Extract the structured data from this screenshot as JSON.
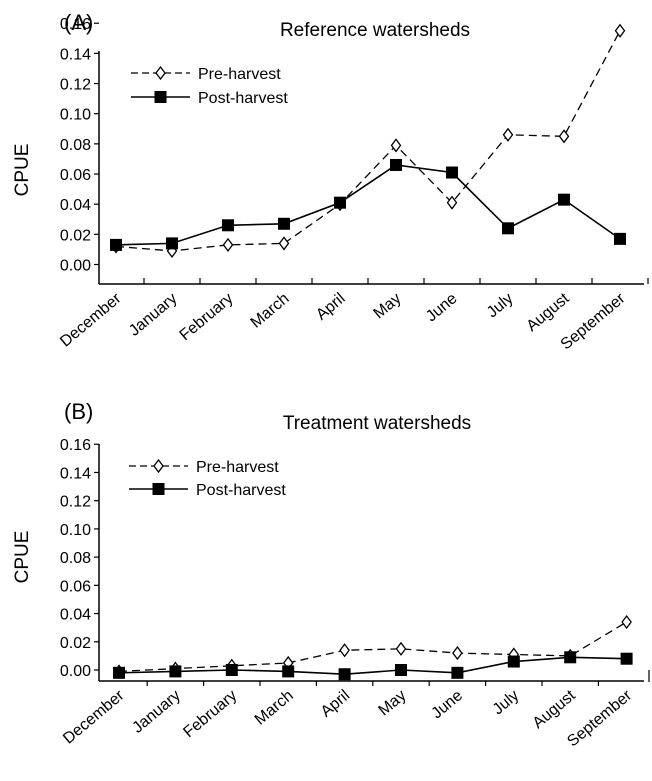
{
  "chart_data": [
    {
      "type": "line",
      "panel_label": "(A)",
      "title": "Reference watersheds",
      "xlabel": "",
      "ylabel": "CPUE",
      "ylim": [
        0,
        0.16
      ],
      "yticks": [
        "0.00",
        "0.02",
        "0.04",
        "0.06",
        "0.08",
        "0.10",
        "0.12",
        "0.14",
        "0.16"
      ],
      "grid": false,
      "legend_position": "top-left",
      "categories": [
        "December",
        "January",
        "February",
        "March",
        "April",
        "May",
        "June",
        "July",
        "August",
        "September"
      ],
      "series": [
        {
          "name": "Pre-harvest",
          "style": "dashed",
          "marker": "open-diamond",
          "values": [
            0.012,
            0.009,
            0.013,
            0.014,
            0.04,
            0.079,
            0.041,
            0.086,
            0.085,
            0.155
          ]
        },
        {
          "name": "Post-harvest",
          "style": "solid",
          "marker": "filled-square",
          "values": [
            0.013,
            0.014,
            0.026,
            0.027,
            0.041,
            0.066,
            0.061,
            0.024,
            0.043,
            0.017
          ]
        }
      ]
    },
    {
      "type": "line",
      "panel_label": "(B)",
      "title": "Treatment watersheds",
      "xlabel": "",
      "ylabel": "CPUE",
      "ylim": [
        -0.004,
        0.16
      ],
      "yticks": [
        "0.00",
        "0.02",
        "0.04",
        "0.06",
        "0.08",
        "0.10",
        "0.12",
        "0.14",
        "0.16"
      ],
      "grid": false,
      "legend_position": "top-left",
      "categories": [
        "December",
        "January",
        "February",
        "March",
        "April",
        "May",
        "June",
        "July",
        "August",
        "September"
      ],
      "series": [
        {
          "name": "Pre-harvest",
          "style": "dashed",
          "marker": "open-diamond",
          "values": [
            -0.001,
            0.001,
            0.003,
            0.005,
            0.014,
            0.015,
            0.012,
            0.011,
            0.01,
            0.034
          ]
        },
        {
          "name": "Post-harvest",
          "style": "solid",
          "marker": "filled-square",
          "values": [
            -0.002,
            -0.001,
            0.0,
            -0.001,
            -0.003,
            0.0,
            -0.002,
            0.006,
            0.009,
            0.008
          ]
        }
      ]
    }
  ]
}
